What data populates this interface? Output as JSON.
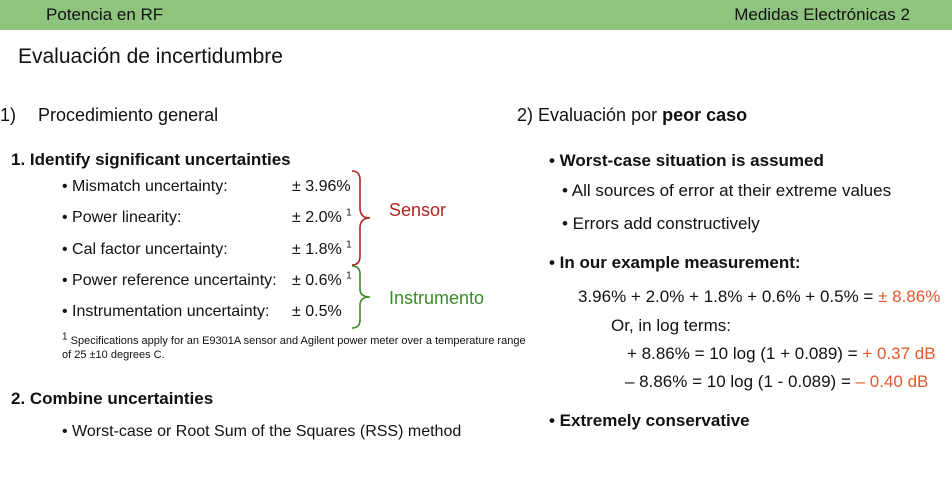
{
  "header": {
    "left": "Potencia en RF",
    "right": "Medidas Electrónicas 2"
  },
  "title": "Evaluación de incertidumbre",
  "left_section": {
    "number": "1)",
    "title": "Procedimiento general",
    "step1": "1. Identify significant uncertainties",
    "items": [
      {
        "label": "• Mismatch uncertainty:",
        "value": "± 3.96%",
        "note": ""
      },
      {
        "label": "• Power linearity:",
        "value": "± 2.0%",
        "note": "1"
      },
      {
        "label": "• Cal factor uncertainty:",
        "value": "± 1.8%",
        "note": "1"
      },
      {
        "label": "• Power reference uncertainty:",
        "value": "± 0.6%",
        "note": "1"
      },
      {
        "label": "• Instrumentation uncertainty:",
        "value": "± 0.5%",
        "note": ""
      }
    ],
    "group_sensor": "Sensor",
    "group_instrument": "Instrumento",
    "footnote_mark": "1",
    "footnote_line1": "Specifications apply for an E9301A sensor and Agilent power meter over a temperature range",
    "footnote_line2": "of 25 ±10 degrees C.",
    "step2": "2. Combine uncertainties",
    "step2_item": "• Worst-case or Root Sum of the Squares (RSS) method"
  },
  "right_section": {
    "title_prefix": "2) Evaluación por ",
    "title_bold": "peor caso",
    "bullet1": "• Worst-case situation is assumed",
    "sub1": "• All sources of error at their extreme values",
    "sub2": "• Errors add constructively",
    "bullet2": "• In our example measurement:",
    "sum_expr": "3.96% + 2.0% + 1.8% + 0.6% + 0.5% = ",
    "sum_result": "± 8.86%",
    "log_intro": "Or, in log terms:",
    "plus_expr": "+ 8.86% = 10 log (1 + 0.089) = ",
    "plus_result": "+ 0.37 dB",
    "minus_expr": "– 8.86% = 10 log (1 - 0.089)  = ",
    "minus_result": "– 0.40 dB",
    "bullet3": "• Extremely conservative"
  },
  "colors": {
    "header_bar": "#8fc47e",
    "sensor": "#b22424",
    "instrument": "#3b8a2a",
    "highlight": "#e2592a"
  }
}
